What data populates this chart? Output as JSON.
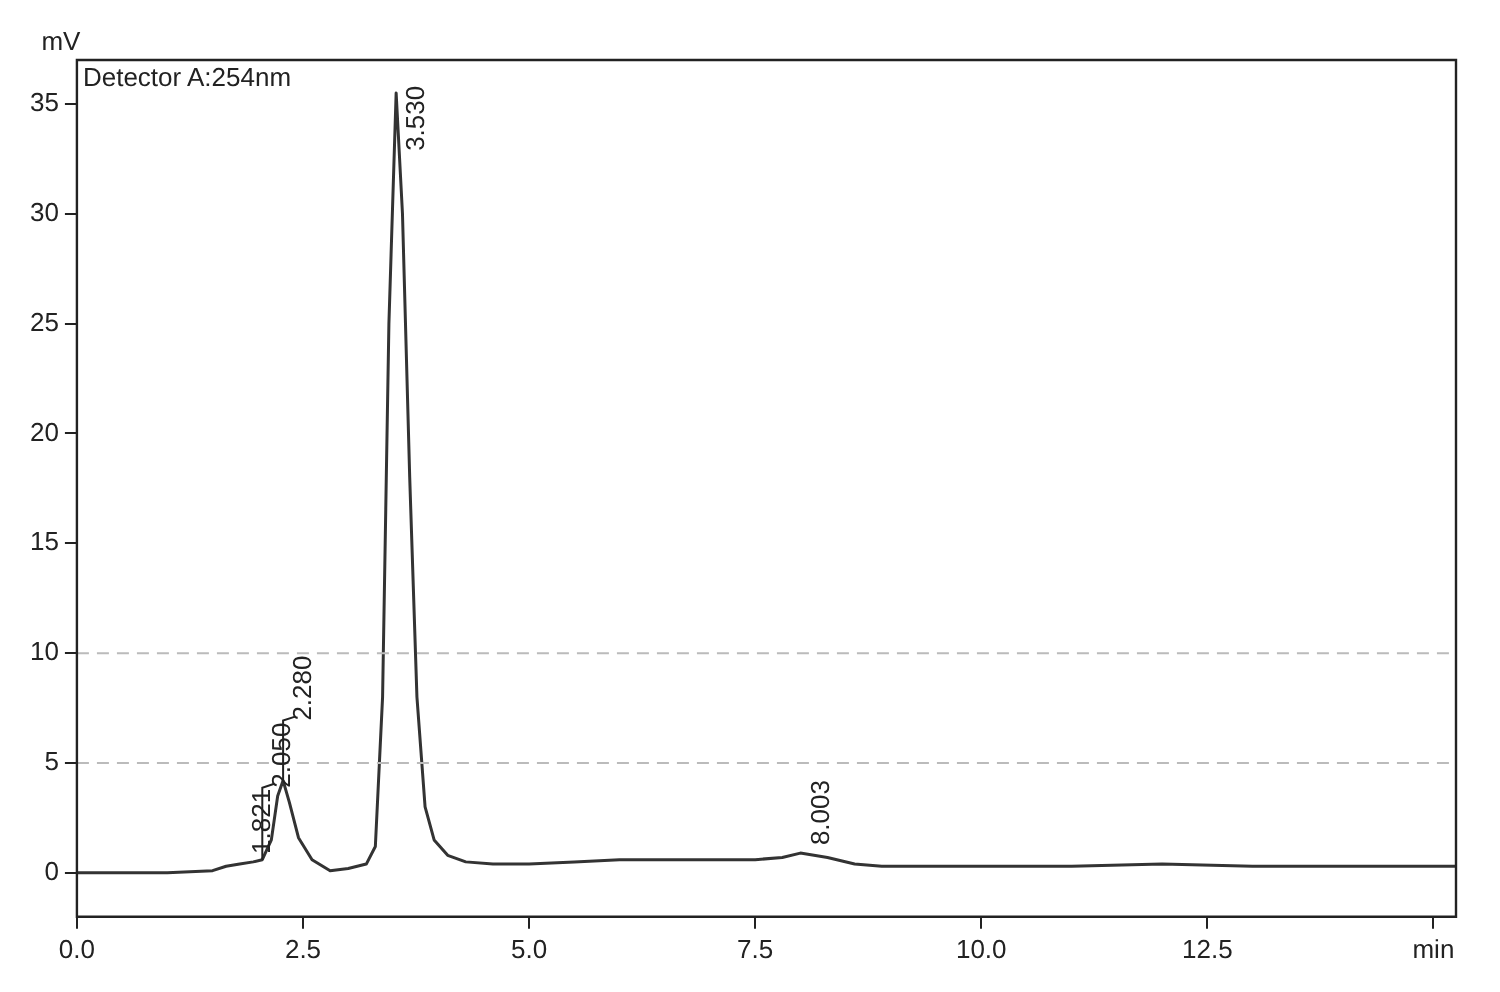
{
  "chart_data": {
    "type": "line",
    "ylabel": "mV",
    "annotations": [
      "Detector A:254nm",
      {
        "text": "1.821",
        "x": 1.821,
        "y": 0.5
      },
      {
        "text": "2.050",
        "x": 2.05,
        "y": 0.6
      },
      {
        "text": "2.280",
        "x": 2.28,
        "y": 4.2
      },
      {
        "text": "3.530",
        "x": 3.53,
        "y": 32.5
      },
      {
        "text": "8.003",
        "x": 8.003,
        "y": 0.9
      }
    ],
    "series": [
      {
        "color": "#333333",
        "x": [
          0,
          0.5,
          1.0,
          1.5,
          1.65,
          1.8,
          1.95,
          2.05,
          2.15,
          2.22,
          2.28,
          2.35,
          2.45,
          2.6,
          2.8,
          3.0,
          3.2,
          3.3,
          3.38,
          3.45,
          3.53,
          3.6,
          3.68,
          3.76,
          3.85,
          3.95,
          4.1,
          4.3,
          4.6,
          5.0,
          5.5,
          6.0,
          6.5,
          7.0,
          7.5,
          7.8,
          8.0,
          8.3,
          8.6,
          8.9,
          9.5,
          10,
          11,
          12,
          13,
          14,
          15,
          15.25
        ],
        "values": [
          0,
          0,
          0,
          0.1,
          0.3,
          0.4,
          0.5,
          0.6,
          1.5,
          3.5,
          4.2,
          3.2,
          1.6,
          0.6,
          0.1,
          0.2,
          0.4,
          1.2,
          8,
          25,
          35.5,
          30,
          18,
          8,
          3,
          1.5,
          0.8,
          0.5,
          0.4,
          0.4,
          0.5,
          0.6,
          0.6,
          0.6,
          0.6,
          0.7,
          0.9,
          0.7,
          0.4,
          0.3,
          0.3,
          0.3,
          0.3,
          0.4,
          0.3,
          0.3,
          0.3,
          0.3
        ]
      }
    ],
    "xlim": [
      0,
      15.25
    ],
    "ylim": [
      -2,
      37
    ],
    "xticks": [
      {
        "value": 0,
        "label": "0.0"
      },
      2.5,
      {
        "value": 5,
        "label": "5.0"
      },
      7.5,
      {
        "value": 10,
        "label": "10.0"
      },
      12.5,
      {
        "value": 15,
        "label": "min"
      }
    ],
    "yticks": [
      0,
      5,
      10,
      15,
      20,
      25,
      30,
      35
    ],
    "ref_lines": [
      {
        "axis": "y",
        "value": 5,
        "color": "#bbbbbb",
        "line_style": "dashed"
      },
      {
        "axis": "y",
        "value": 10,
        "color": "#bbbbbb",
        "line_style": "dashed"
      }
    ],
    "grid": false,
    "marker": "none",
    "line_style": "solid"
  }
}
